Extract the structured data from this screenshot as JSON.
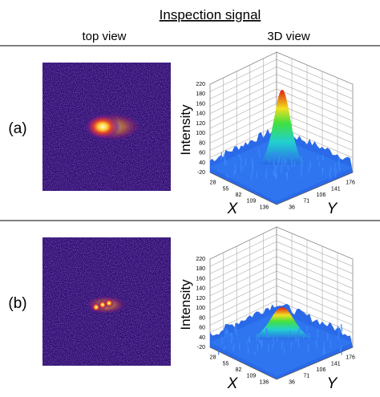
{
  "title": "Inspection signal",
  "columns": [
    "top view",
    "3D view"
  ],
  "panels": [
    {
      "label": "(a)",
      "plot": {
        "z_label": "Intensity",
        "x_label": "X",
        "y_label": "Y",
        "z_ticks": [
          "220",
          "180",
          "160",
          "140",
          "120",
          "100",
          "80",
          "60",
          "40",
          "-20"
        ],
        "x_ticks": [
          "28",
          "55",
          "82",
          "109",
          "136"
        ],
        "y_ticks": [
          "36",
          "71",
          "106",
          "141",
          "176"
        ]
      }
    },
    {
      "label": "(b)",
      "plot": {
        "z_label": "Intensity",
        "x_label": "X",
        "y_label": "Y",
        "z_ticks": [
          "220",
          "180",
          "160",
          "140",
          "120",
          "100",
          "80",
          "60",
          "40",
          "-20"
        ],
        "x_ticks": [
          "28",
          "55",
          "82",
          "109",
          "136"
        ],
        "y_ticks": [
          "36",
          "71",
          "106",
          "141",
          "176"
        ]
      }
    }
  ]
}
